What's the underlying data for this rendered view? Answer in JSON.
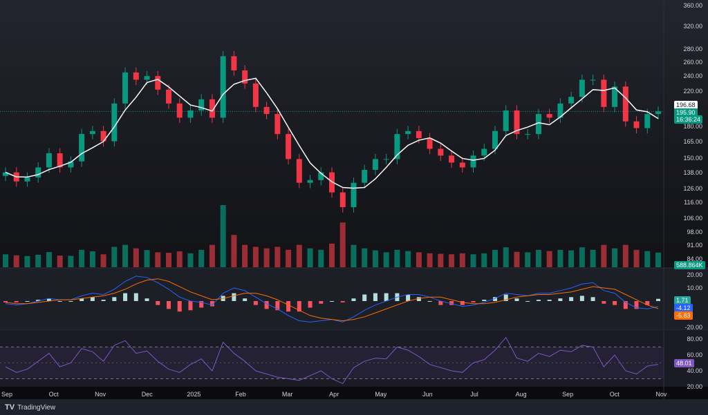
{
  "chart_data": [
    {
      "type": "candlestick",
      "panel": "price",
      "y_scale": "log",
      "y_ticks": [
        84,
        91,
        98,
        106,
        116,
        126,
        138,
        150,
        165,
        180,
        220,
        240,
        260,
        280,
        320,
        360
      ],
      "y_tick_labels": [
        "84.00",
        "91.00",
        "98.00",
        "106.00",
        "116.00",
        "126.00",
        "138.00",
        "150.00",
        "165.00",
        "180.00",
        "220.00",
        "240.00",
        "260.00",
        "280.00",
        "320.00",
        "360.00"
      ],
      "x_tick_labels": [
        "Sep",
        "Oct",
        "Nov",
        "Dec",
        "2025",
        "Feb",
        "Mar",
        "Apr",
        "May",
        "Jun",
        "Jul",
        "Aug",
        "Sep",
        "Oct",
        "Nov"
      ],
      "close": [
        138,
        131,
        134,
        142,
        154,
        142,
        147,
        172,
        175,
        165,
        205,
        245,
        235,
        240,
        222,
        205,
        189,
        197,
        210,
        189,
        269,
        248,
        230,
        201,
        193,
        172,
        149,
        130,
        132,
        138,
        123,
        113,
        130,
        140,
        149,
        149,
        172,
        175,
        168,
        158,
        152,
        146,
        142,
        152,
        158,
        175,
        197,
        172,
        172,
        193,
        189,
        205,
        213,
        235,
        235,
        201,
        226,
        185,
        178,
        193,
        195.9
      ],
      "moving_average_color": "#ffffff",
      "up_color": "#089981",
      "down_color": "#f23645",
      "price_line_label": "196.68",
      "last_price_label": "195.90",
      "countdown_label": "16:36:24"
    },
    {
      "type": "bar",
      "panel": "volume",
      "values_k": [
        520,
        480,
        450,
        500,
        610,
        470,
        460,
        700,
        640,
        520,
        820,
        900,
        760,
        690,
        600,
        580,
        640,
        560,
        700,
        900,
        2500,
        1300,
        900,
        820,
        760,
        820,
        700,
        900,
        760,
        700,
        950,
        1800,
        900,
        760,
        680,
        600,
        700,
        650,
        600,
        560,
        540,
        520,
        560,
        520,
        560,
        700,
        800,
        620,
        600,
        700,
        650,
        700,
        680,
        800,
        700,
        900,
        760,
        900,
        700,
        650,
        588.864
      ],
      "last_label": "588.864K"
    },
    {
      "type": "line",
      "panel": "macd",
      "y_ticks": [
        20,
        10,
        -20
      ],
      "y_tick_labels": [
        "20.00",
        "10.00",
        "-20.00"
      ],
      "macd": [
        -2,
        -3,
        -2,
        0,
        2,
        1,
        1,
        4,
        6,
        5,
        9,
        15,
        19,
        18,
        14,
        9,
        3,
        0,
        -1,
        -3,
        6,
        10,
        8,
        3,
        -2,
        -6,
        -11,
        -15,
        -16,
        -15,
        -14,
        -16,
        -12,
        -7,
        -3,
        0,
        3,
        5,
        5,
        3,
        0,
        -2,
        -4,
        -3,
        -1,
        2,
        6,
        5,
        4,
        6,
        6,
        8,
        10,
        13,
        14,
        8,
        6,
        -1,
        -5,
        -6,
        -4.12
      ],
      "signal": [
        -1,
        -2,
        -2,
        -1,
        0,
        1,
        1,
        2,
        3,
        4,
        6,
        9,
        13,
        16,
        17,
        15,
        11,
        7,
        4,
        1,
        2,
        4,
        6,
        6,
        4,
        1,
        -3,
        -7,
        -11,
        -13,
        -14,
        -15,
        -14,
        -12,
        -9,
        -6,
        -3,
        0,
        2,
        3,
        3,
        1,
        -1,
        -2,
        -2,
        -1,
        1,
        3,
        4,
        5,
        5,
        6,
        7,
        9,
        11,
        10,
        9,
        5,
        1,
        -3,
        -5.83
      ],
      "histogram_last": 1.71,
      "labels": [
        "1.71",
        "-4.12",
        "-5.83"
      ],
      "colors": {
        "macd": "#2962ff",
        "signal": "#ff6d00",
        "hist_up": "#b2dfdb",
        "hist_down": "#f7525f"
      }
    },
    {
      "type": "line",
      "panel": "rsi",
      "y_ticks": [
        80,
        60,
        40,
        20
      ],
      "y_tick_labels": [
        "80.00",
        "60.00",
        "40.00",
        "20.00"
      ],
      "bands": [
        70,
        30
      ],
      "values": [
        45,
        38,
        42,
        52,
        62,
        45,
        50,
        68,
        64,
        52,
        72,
        78,
        62,
        65,
        52,
        42,
        38,
        48,
        55,
        40,
        76,
        62,
        52,
        40,
        36,
        32,
        30,
        28,
        34,
        40,
        30,
        24,
        44,
        52,
        56,
        55,
        70,
        66,
        58,
        48,
        44,
        40,
        38,
        50,
        54,
        66,
        82,
        56,
        52,
        62,
        58,
        66,
        64,
        72,
        70,
        45,
        60,
        40,
        36,
        46,
        48.01
      ],
      "last_label": "48.01",
      "color": "#7e57c2"
    }
  ],
  "footer": {
    "brand": "TradingView"
  }
}
